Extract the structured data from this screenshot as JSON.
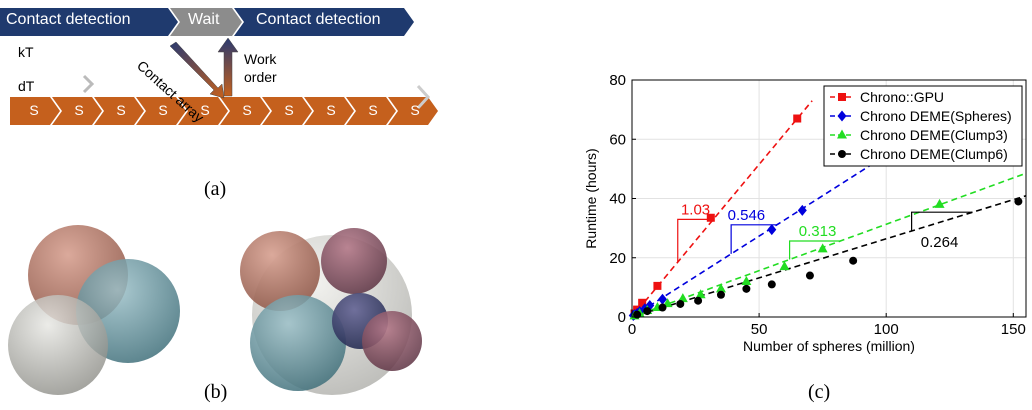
{
  "panel_a": {
    "caption": "(a)",
    "kt_label": "kT",
    "dt_label": "dT",
    "kt_segments": [
      "Contact detection",
      "Wait",
      "Contact detection"
    ],
    "dt_step_label": "S",
    "dt_step_count": 10,
    "contact_array_label": "Contact array",
    "work_order_line1": "Work",
    "work_order_line2": "order",
    "colors": {
      "kt_blue": "#1f3a6e",
      "wait_gray": "#8c8c8c",
      "dt_orange": "#c5601d"
    }
  },
  "panel_b": {
    "caption": "(b)"
  },
  "panel_c": {
    "caption": "(c)"
  },
  "chart_data": {
    "type": "scatter",
    "xlabel": "Number of spheres (million)",
    "ylabel": "Runtime (hours)",
    "xlim": [
      0,
      155
    ],
    "ylim": [
      0,
      80
    ],
    "xticks": [
      0,
      50,
      100,
      150
    ],
    "yticks": [
      0,
      20,
      40,
      60,
      80
    ],
    "grid": true,
    "legend_position": "top-right",
    "series": [
      {
        "name": "Chrono::GPU",
        "color": "#ee1111",
        "marker": "square",
        "x": [
          1,
          2,
          4,
          10,
          31,
          65
        ],
        "y": [
          1.2,
          2.5,
          4.8,
          10.5,
          33.5,
          67
        ],
        "slope": 1.03
      },
      {
        "name": "Chrono DEME(Spheres)",
        "color": "#0000dd",
        "marker": "diamond",
        "x": [
          0.5,
          1,
          2,
          3,
          5,
          7,
          12,
          55,
          67
        ],
        "y": [
          0.5,
          0.8,
          1.2,
          1.8,
          2.8,
          3.9,
          6,
          29.5,
          36
        ],
        "slope": 0.546
      },
      {
        "name": "Chrono DEME(Clump3)",
        "color": "#22dd22",
        "marker": "triangle",
        "x": [
          1,
          3,
          6,
          10,
          14,
          20,
          27,
          35,
          45,
          60,
          75,
          121
        ],
        "y": [
          0.4,
          1.2,
          2.2,
          3.2,
          4.5,
          6.2,
          7.5,
          9.5,
          12,
          17,
          23,
          38
        ],
        "slope": 0.313
      },
      {
        "name": "Chrono DEME(Clump6)",
        "color": "#000000",
        "marker": "circle",
        "x": [
          2,
          6,
          12,
          19,
          26,
          35,
          45,
          55,
          70,
          87,
          152
        ],
        "y": [
          0.8,
          2,
          3.2,
          4.4,
          5.5,
          7.5,
          9.5,
          11,
          14,
          19,
          39
        ],
        "slope": 0.264
      }
    ],
    "slope_labels": [
      "1.03",
      "0.546",
      "0.313",
      "0.264"
    ]
  }
}
